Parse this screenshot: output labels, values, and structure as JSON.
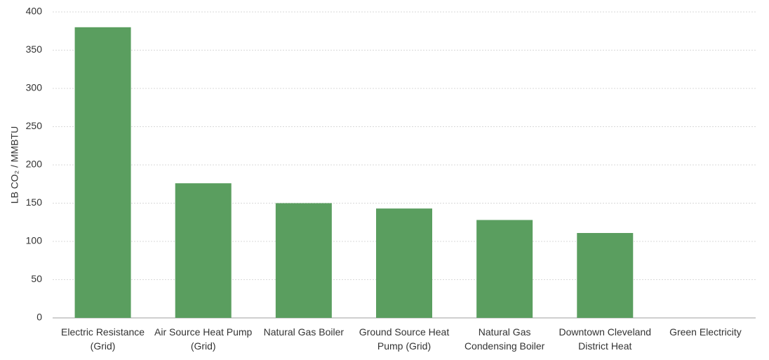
{
  "chart_data": {
    "type": "bar",
    "y_label": "LB CO₂ / MMBTU",
    "categories": [
      "Electric Resistance (Grid)",
      "Air Source Heat Pump (Grid)",
      "Natural Gas Boiler",
      "Ground Source Heat Pump (Grid)",
      "Natural Gas Condensing Boiler",
      "Downtown Cleveland District Heat",
      "Green Electricity"
    ],
    "values": [
      380,
      176,
      150,
      143,
      128,
      111,
      0
    ],
    "color": "#5a9e5f",
    "ylim": [
      0,
      400
    ],
    "yticks": [
      0,
      50,
      100,
      150,
      200,
      250,
      300,
      350,
      400
    ],
    "grid": true
  }
}
